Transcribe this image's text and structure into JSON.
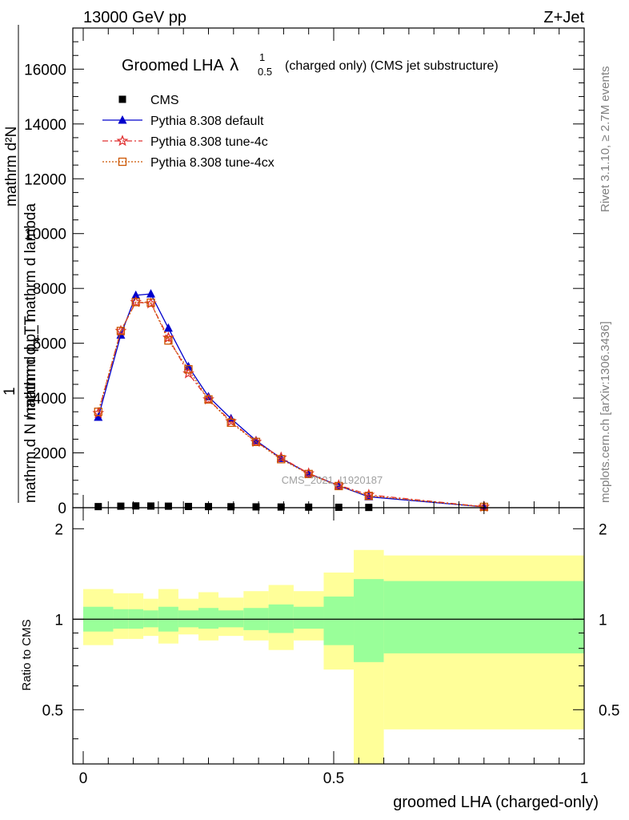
{
  "header": {
    "energy": "13000 GeV pp",
    "process": "Z+Jet"
  },
  "side_labels": {
    "rivet": "Rivet 3.1.10, ≥ 2.7M events",
    "mcplots": "mcplots.cern.ch [arXiv:1306.3436]"
  },
  "watermark": "CMS_2021_I1920187",
  "chart_data": [
    {
      "type": "line",
      "title_main": "Groomed LHA",
      "title_symbol": "λ",
      "title_sup": "1",
      "title_sub": "0.5",
      "title_rest": "(charged only) (CMS jet substructure)",
      "ylabel_top": "mathrm d²N",
      "ylabel_bottom_line1": "mathrm d p_T mathrm d lambda",
      "ylabel_prefix_num": "1",
      "ylabel_prefix_den": "mathrm d N / mathrm d p_T",
      "xlim": [
        0,
        1
      ],
      "ylim": [
        0,
        17500
      ],
      "yticks": [
        0,
        2000,
        4000,
        6000,
        8000,
        10000,
        12000,
        14000,
        16000
      ],
      "ytick_labels": [
        "0",
        "2000",
        "4000",
        "6000",
        "8000",
        "10000",
        "12000",
        "14000",
        "16000"
      ],
      "legend_position": "top-left",
      "series": [
        {
          "name": "CMS",
          "marker": "square",
          "color": "#000000",
          "x": [
            0.03,
            0.075,
            0.105,
            0.135,
            0.17,
            0.21,
            0.25,
            0.295,
            0.345,
            0.395,
            0.45,
            0.51,
            0.57
          ],
          "y": [
            40,
            55,
            65,
            60,
            55,
            45,
            40,
            35,
            30,
            25,
            20,
            15,
            10
          ]
        },
        {
          "name": "Pythia 8.308 default",
          "marker": "triangle",
          "color": "#0000cc",
          "x": [
            0.03,
            0.075,
            0.105,
            0.135,
            0.17,
            0.21,
            0.25,
            0.295,
            0.345,
            0.395,
            0.45,
            0.51,
            0.57,
            0.8
          ],
          "y": [
            3300,
            6300,
            7750,
            7800,
            6550,
            5150,
            4050,
            3250,
            2450,
            1800,
            1250,
            800,
            400,
            30
          ]
        },
        {
          "name": "Pythia 8.308 tune-4c",
          "marker": "star",
          "color": "#e03030",
          "x": [
            0.03,
            0.075,
            0.105,
            0.135,
            0.17,
            0.21,
            0.25,
            0.295,
            0.345,
            0.395,
            0.45,
            0.51,
            0.57,
            0.8
          ],
          "y": [
            3450,
            6450,
            7500,
            7450,
            6200,
            4900,
            3950,
            3150,
            2400,
            1830,
            1250,
            820,
            470,
            35
          ]
        },
        {
          "name": "Pythia 8.308 tune-4cx",
          "marker": "open-square",
          "color": "#cc5500",
          "x": [
            0.03,
            0.075,
            0.105,
            0.135,
            0.17,
            0.21,
            0.25,
            0.295,
            0.345,
            0.395,
            0.45,
            0.51,
            0.57,
            0.8
          ],
          "y": [
            3500,
            6450,
            7500,
            7480,
            6100,
            5050,
            3950,
            3100,
            2400,
            1770,
            1230,
            790,
            430,
            30
          ]
        }
      ]
    },
    {
      "type": "area",
      "ylabel": "Ratio to CMS",
      "xlabel": "groomed LHA (charged-only)",
      "xlim": [
        0,
        1
      ],
      "ylim": [
        0.33,
        2.35
      ],
      "xticks": [
        0,
        0.5,
        1
      ],
      "xtick_labels": [
        "0",
        "0.5",
        "1"
      ],
      "yticks": [
        0.5,
        1,
        2
      ],
      "ytick_labels": [
        "0.5",
        "1",
        "2"
      ],
      "reference_line": 1,
      "bins": [
        {
          "x0": 0.0,
          "x1": 0.06,
          "inner": [
            0.91,
            1.1
          ],
          "outer": [
            0.82,
            1.26
          ]
        },
        {
          "x0": 0.06,
          "x1": 0.09,
          "inner": [
            0.93,
            1.08
          ],
          "outer": [
            0.86,
            1.22
          ]
        },
        {
          "x0": 0.09,
          "x1": 0.12,
          "inner": [
            0.93,
            1.08
          ],
          "outer": [
            0.86,
            1.22
          ]
        },
        {
          "x0": 0.12,
          "x1": 0.15,
          "inner": [
            0.94,
            1.07
          ],
          "outer": [
            0.88,
            1.17
          ]
        },
        {
          "x0": 0.15,
          "x1": 0.19,
          "inner": [
            0.91,
            1.1
          ],
          "outer": [
            0.83,
            1.26
          ]
        },
        {
          "x0": 0.19,
          "x1": 0.23,
          "inner": [
            0.94,
            1.07
          ],
          "outer": [
            0.89,
            1.17
          ]
        },
        {
          "x0": 0.23,
          "x1": 0.27,
          "inner": [
            0.93,
            1.09
          ],
          "outer": [
            0.85,
            1.23
          ]
        },
        {
          "x0": 0.27,
          "x1": 0.32,
          "inner": [
            0.94,
            1.07
          ],
          "outer": [
            0.88,
            1.18
          ]
        },
        {
          "x0": 0.32,
          "x1": 0.37,
          "inner": [
            0.92,
            1.09
          ],
          "outer": [
            0.85,
            1.24
          ]
        },
        {
          "x0": 0.37,
          "x1": 0.42,
          "inner": [
            0.9,
            1.12
          ],
          "outer": [
            0.79,
            1.3
          ]
        },
        {
          "x0": 0.42,
          "x1": 0.48,
          "inner": [
            0.93,
            1.1
          ],
          "outer": [
            0.85,
            1.24
          ]
        },
        {
          "x0": 0.48,
          "x1": 0.54,
          "inner": [
            0.82,
            1.19
          ],
          "outer": [
            0.68,
            1.43
          ]
        },
        {
          "x0": 0.54,
          "x1": 0.6,
          "inner": [
            0.72,
            1.36
          ],
          "outer": [
            0.33,
            1.7
          ]
        },
        {
          "x0": 0.6,
          "x1": 1.0,
          "inner": [
            0.77,
            1.34
          ],
          "outer": [
            0.43,
            1.63
          ]
        }
      ],
      "colors": {
        "inner": "#99ff99",
        "outer": "#ffff99"
      }
    }
  ]
}
